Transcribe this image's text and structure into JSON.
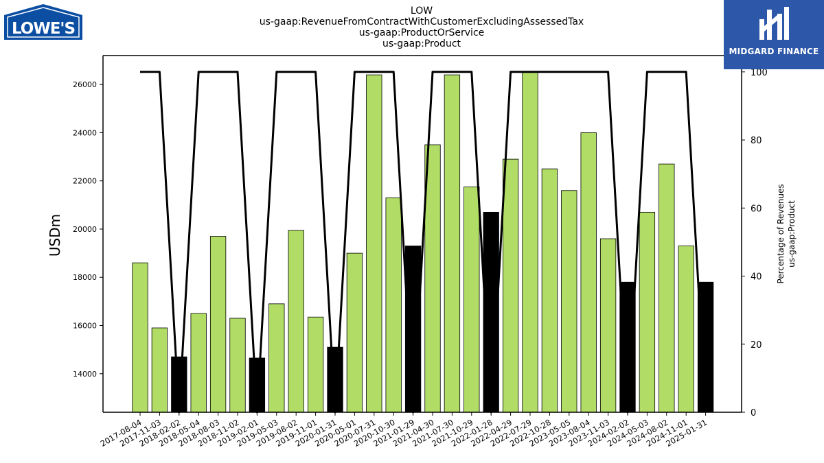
{
  "chart_data": {
    "type": "bar",
    "title_lines": [
      "LOW",
      "us-gaap:RevenueFromContractWithCustomerExcludingAssessedTax",
      "us-gaap:ProductOrService",
      "us-gaap:Product"
    ],
    "ylabel": "USDm",
    "y2label_lines": [
      "Percentage of Revenues",
      "us-gaap:Product"
    ],
    "ylim": [
      12400,
      27200
    ],
    "y2lim": [
      0,
      104.8
    ],
    "yticks": [
      14000,
      16000,
      18000,
      20000,
      22000,
      24000,
      26000
    ],
    "y2ticks": [
      0,
      20,
      40,
      60,
      80,
      100
    ],
    "categories": [
      "2017-08-04",
      "2017-11-03",
      "2018-02-02",
      "2018-05-04",
      "2018-08-03",
      "2018-11-02",
      "2019-02-01",
      "2019-05-03",
      "2019-08-02",
      "2019-11-01",
      "2020-01-31",
      "2020-05-01",
      "2020-07-31",
      "2020-10-30",
      "2021-01-29",
      "2021-04-30",
      "2021-07-30",
      "2021-10-29",
      "2022-01-28",
      "2022-04-29",
      "2022-07-29",
      "2022-10-28",
      "2023-05-05",
      "2023-08-04",
      "2023-11-03",
      "2024-02-02",
      "2024-05-03",
      "2024-08-02",
      "2024-11-01",
      "2025-01-31"
    ],
    "series": [
      {
        "type": "bar",
        "values": [
          18600,
          15900,
          14700,
          16500,
          19700,
          16300,
          14650,
          16900,
          19950,
          16350,
          15100,
          19000,
          26400,
          21300,
          19300,
          23500,
          26400,
          21750,
          20700,
          22900,
          26500,
          22500,
          21600,
          24000,
          19600,
          17800,
          20700,
          22700,
          19300,
          17800
        ],
        "bar_colors": [
          "#b1dc66",
          "#b1dc66",
          "#000000",
          "#b1dc66",
          "#b1dc66",
          "#b1dc66",
          "#000000",
          "#b1dc66",
          "#b1dc66",
          "#b1dc66",
          "#000000",
          "#b1dc66",
          "#b1dc66",
          "#b1dc66",
          "#000000",
          "#b1dc66",
          "#b1dc66",
          "#b1dc66",
          "#000000",
          "#b1dc66",
          "#b1dc66",
          "#b1dc66",
          "#b1dc66",
          "#b1dc66",
          "#b1dc66",
          "#000000",
          "#b1dc66",
          "#b1dc66",
          "#b1dc66",
          "#000000"
        ]
      },
      {
        "type": "line",
        "axis": "right",
        "values": [
          100,
          100,
          0,
          100,
          100,
          100,
          0,
          100,
          100,
          100,
          0,
          100,
          100,
          100,
          0,
          100,
          100,
          100,
          0,
          100,
          100,
          100,
          100,
          100,
          100,
          0,
          100,
          100,
          100,
          0
        ],
        "color": "#000000"
      }
    ],
    "grid": false
  },
  "logos": {
    "lowes_text": "LOWE'S",
    "midgard_text": "MIDGARD FINANCE"
  }
}
